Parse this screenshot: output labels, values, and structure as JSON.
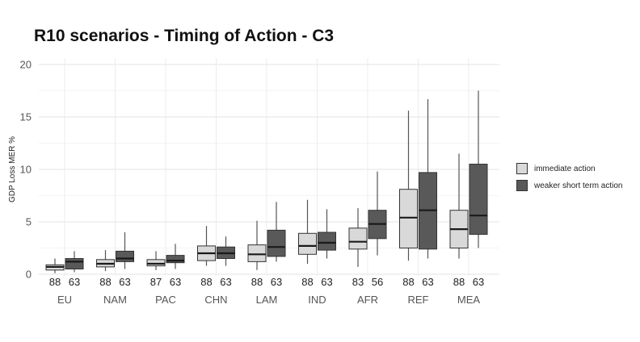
{
  "chart_data": {
    "type": "box",
    "title": "R10 scenarios - Timing of Action - C3",
    "xlabel": "",
    "ylabel": "GDP Loss MER %",
    "ylim": [
      0,
      20
    ],
    "yticks": [
      0,
      5,
      10,
      15,
      20
    ],
    "grid": true,
    "legend_position": "right",
    "categories": [
      "EU",
      "NAM",
      "PAC",
      "CHN",
      "LAM",
      "IND",
      "AFR",
      "REF",
      "MEA"
    ],
    "series": [
      {
        "name": "immediate action",
        "color": "#d9d9d9",
        "counts": [
          "88",
          "88",
          "87",
          "88",
          "88",
          "88",
          "83",
          "88",
          "88"
        ],
        "boxes": [
          {
            "min": 0.1,
            "q1": 0.4,
            "median": 0.7,
            "q3": 0.9,
            "max": 1.5
          },
          {
            "min": 0.3,
            "q1": 0.7,
            "median": 1.0,
            "q3": 1.4,
            "max": 2.3
          },
          {
            "min": 0.4,
            "q1": 0.8,
            "median": 1.0,
            "q3": 1.4,
            "max": 2.2
          },
          {
            "min": 0.8,
            "q1": 1.3,
            "median": 2.0,
            "q3": 2.7,
            "max": 4.6
          },
          {
            "min": 0.4,
            "q1": 1.2,
            "median": 1.9,
            "q3": 2.8,
            "max": 5.1
          },
          {
            "min": 1.0,
            "q1": 1.9,
            "median": 2.7,
            "q3": 3.9,
            "max": 7.1
          },
          {
            "min": 0.7,
            "q1": 2.4,
            "median": 3.1,
            "q3": 4.4,
            "max": 6.3
          },
          {
            "min": 1.3,
            "q1": 2.5,
            "median": 5.4,
            "q3": 8.1,
            "max": 15.6
          },
          {
            "min": 1.5,
            "q1": 2.5,
            "median": 4.3,
            "q3": 6.1,
            "max": 11.5
          }
        ]
      },
      {
        "name": "weaker short term action",
        "color": "#595959",
        "counts": [
          "63",
          "63",
          "63",
          "63",
          "63",
          "63",
          "56",
          "63",
          "63"
        ],
        "boxes": [
          {
            "min": 0.2,
            "q1": 0.5,
            "median": 1.2,
            "q3": 1.5,
            "max": 2.2
          },
          {
            "min": 0.5,
            "q1": 1.2,
            "median": 1.5,
            "q3": 2.2,
            "max": 4.0
          },
          {
            "min": 0.5,
            "q1": 1.1,
            "median": 1.3,
            "q3": 1.8,
            "max": 2.9
          },
          {
            "min": 0.8,
            "q1": 1.5,
            "median": 2.0,
            "q3": 2.6,
            "max": 3.6
          },
          {
            "min": 1.2,
            "q1": 1.7,
            "median": 2.6,
            "q3": 4.2,
            "max": 6.9
          },
          {
            "min": 1.5,
            "q1": 2.3,
            "median": 3.0,
            "q3": 4.0,
            "max": 6.2
          },
          {
            "min": 1.8,
            "q1": 3.4,
            "median": 4.8,
            "q3": 6.1,
            "max": 9.8
          },
          {
            "min": 1.5,
            "q1": 2.4,
            "median": 6.1,
            "q3": 9.7,
            "max": 16.7
          },
          {
            "min": 2.5,
            "q1": 3.8,
            "median": 5.6,
            "q3": 10.5,
            "max": 17.5
          }
        ]
      }
    ]
  }
}
